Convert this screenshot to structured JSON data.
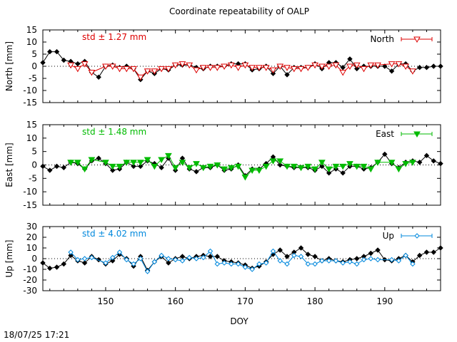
{
  "title": "Coordinate repeatability of OALP",
  "timestamp": "18/07/25 17:21",
  "xlabel": "DOY",
  "chart_data": [
    {
      "type": "line",
      "ylabel": "North [mm]",
      "xlim": [
        141,
        198
      ],
      "ylim": [
        -15,
        15
      ],
      "yticks": [
        15,
        10,
        5,
        0,
        -5,
        -10,
        -15
      ],
      "xticks": [],
      "annotation": "std ± 1.27 mm",
      "annotation_color": "#dd0000",
      "legend": "North",
      "legend_position": "top-right",
      "series": [
        {
          "color": "#000000",
          "marker": "diamond",
          "x": [
            141,
            142,
            143,
            144,
            145,
            146,
            147,
            148,
            149,
            150,
            151,
            152,
            153,
            154,
            155,
            156,
            157,
            158,
            159,
            160,
            161,
            162,
            163,
            164,
            165,
            166,
            167,
            168,
            169,
            170,
            171,
            172,
            173,
            174,
            175,
            176,
            177,
            178,
            179,
            180,
            181,
            182,
            183,
            184,
            185,
            186,
            187,
            188,
            189,
            190,
            191,
            192,
            193,
            194,
            195,
            196,
            197,
            198
          ],
          "y": [
            1.5,
            6,
            6,
            2.5,
            2,
            1,
            2,
            -2.5,
            -4.5,
            0,
            0.5,
            -0.5,
            0,
            -1,
            -5.5,
            -2,
            -3,
            -1,
            -1.5,
            0.5,
            0.5,
            0.5,
            -0.5,
            -1,
            0,
            0,
            0,
            1,
            1,
            1,
            -1.5,
            -1,
            0,
            -3,
            0,
            -3.5,
            -0.5,
            -0.5,
            -0.5,
            1,
            -1,
            1.5,
            1.5,
            -0.5,
            3,
            -1,
            0,
            0,
            0,
            0,
            -2,
            1,
            1,
            -2,
            -0.5,
            -0.5,
            0,
            0
          ]
        },
        {
          "color": "#dd0000",
          "marker": "triangle-down-open",
          "x": [
            145,
            146,
            147,
            148,
            150,
            151,
            152,
            153,
            154,
            155,
            156,
            157,
            158,
            159,
            160,
            161,
            162,
            163,
            164,
            165,
            166,
            167,
            168,
            169,
            170,
            171,
            172,
            173,
            174,
            175,
            176,
            177,
            178,
            179,
            180,
            181,
            182,
            183,
            184,
            185,
            186,
            187,
            188,
            189,
            191,
            192,
            193,
            194
          ],
          "y": [
            0.5,
            -1,
            1,
            -2.5,
            0,
            0,
            -1,
            -1,
            -1,
            -4.5,
            -2,
            -2,
            -1,
            -1,
            0.5,
            1,
            0.5,
            -1.5,
            -0.5,
            -0.5,
            -0.5,
            0,
            0.5,
            -0.5,
            0.5,
            -0.5,
            -0.5,
            -0.5,
            -1.5,
            0,
            -0.5,
            -1,
            -1,
            -0.5,
            0.5,
            0,
            0,
            0.5,
            -2.5,
            0,
            0.5,
            -1,
            0.5,
            0.5,
            1,
            1,
            0,
            -2
          ]
        }
      ]
    },
    {
      "type": "line",
      "ylabel": "East [mm]",
      "xlim": [
        141,
        198
      ],
      "ylim": [
        -15,
        15
      ],
      "yticks": [
        15,
        10,
        5,
        0,
        -5,
        -10,
        -15
      ],
      "xticks": [],
      "annotation": "std ± 1.48 mm",
      "annotation_color": "#00bb00",
      "legend": "East",
      "legend_position": "top-right",
      "series": [
        {
          "color": "#000000",
          "marker": "diamond",
          "x": [
            141,
            142,
            143,
            144,
            145,
            146,
            147,
            148,
            149,
            150,
            151,
            152,
            153,
            154,
            155,
            156,
            157,
            158,
            159,
            160,
            161,
            162,
            163,
            164,
            165,
            166,
            167,
            168,
            169,
            170,
            171,
            172,
            173,
            174,
            175,
            176,
            177,
            178,
            179,
            180,
            181,
            182,
            183,
            184,
            185,
            186,
            187,
            188,
            189,
            190,
            191,
            192,
            193,
            194,
            195,
            196,
            197,
            198
          ],
          "y": [
            -0.5,
            -2,
            -0.5,
            -1,
            1,
            0.5,
            -1.5,
            1.5,
            2.5,
            0.5,
            -2,
            -1.5,
            1,
            -0.5,
            -0.5,
            1.5,
            0.5,
            -1,
            2.5,
            -2,
            2.5,
            -1.5,
            -2.5,
            -1,
            -1,
            0,
            -2,
            -1.5,
            0,
            -4,
            -1.5,
            -1.5,
            0.5,
            3,
            0,
            -0.5,
            -1,
            -1,
            -1,
            -2,
            -0.5,
            -3,
            -1.5,
            -3,
            -0.5,
            -0.5,
            -1.5,
            -1,
            1,
            4,
            0.5,
            -1,
            1,
            1.5,
            1,
            3.5,
            1.5,
            0.5
          ]
        },
        {
          "color": "#00bb00",
          "marker": "triangle-down-filled",
          "x": [
            145,
            146,
            147,
            148,
            150,
            151,
            152,
            153,
            154,
            155,
            156,
            157,
            158,
            159,
            160,
            161,
            162,
            163,
            164,
            165,
            166,
            167,
            168,
            169,
            170,
            171,
            172,
            173,
            174,
            175,
            176,
            177,
            178,
            179,
            180,
            181,
            182,
            183,
            184,
            185,
            186,
            187,
            188,
            189,
            191,
            192,
            193,
            194
          ],
          "y": [
            1,
            1,
            -1.5,
            2,
            1,
            -0.5,
            -0.5,
            1,
            1,
            1,
            2,
            -0.5,
            2,
            3.5,
            -1,
            1,
            -1,
            0.5,
            -1,
            -0.5,
            0,
            -1.5,
            -1,
            -0.5,
            -4.5,
            -2,
            -2,
            -0.5,
            1.5,
            1.5,
            -0.5,
            -0.5,
            -1,
            -0.5,
            -1.5,
            1,
            -1.5,
            -0.5,
            -0.5,
            0.5,
            -0.5,
            -0.5,
            -1.5,
            1,
            1,
            -1.5,
            0.5,
            1
          ]
        }
      ]
    },
    {
      "type": "line",
      "ylabel": "Up [mm]",
      "xlim": [
        141,
        198
      ],
      "ylim": [
        -30,
        30
      ],
      "yticks": [
        30,
        20,
        10,
        0,
        -10,
        -20,
        -30
      ],
      "xticks": [
        150,
        160,
        170,
        180,
        190
      ],
      "annotation": "std ± 4.02 mm",
      "annotation_color": "#0088dd",
      "legend": "Up",
      "legend_position": "top-right",
      "series": [
        {
          "color": "#000000",
          "marker": "diamond",
          "x": [
            141,
            142,
            143,
            144,
            145,
            146,
            147,
            148,
            149,
            150,
            151,
            152,
            153,
            154,
            155,
            156,
            157,
            158,
            159,
            160,
            161,
            162,
            163,
            164,
            165,
            166,
            167,
            168,
            169,
            170,
            171,
            172,
            173,
            174,
            175,
            176,
            177,
            178,
            179,
            180,
            181,
            182,
            183,
            184,
            185,
            186,
            187,
            188,
            189,
            190,
            191,
            192,
            193,
            194,
            195,
            196,
            197,
            198
          ],
          "y": [
            -4,
            -9,
            -8,
            -5,
            3,
            -2,
            -4,
            2,
            -1,
            -5,
            -2,
            4,
            0,
            -7,
            2,
            -11,
            -3,
            2,
            -4,
            0,
            2,
            0,
            2,
            3,
            2,
            2,
            -2,
            -3,
            -4,
            -6,
            -9,
            -7,
            -3,
            4,
            8,
            2,
            6,
            10,
            4,
            2,
            -2,
            0,
            -2,
            -3,
            -1,
            0,
            2,
            5,
            8,
            -1,
            -2,
            0,
            3,
            -3,
            3,
            6,
            6,
            10
          ]
        },
        {
          "color": "#0088dd",
          "marker": "diamond-open",
          "x": [
            145,
            146,
            147,
            148,
            150,
            151,
            152,
            153,
            154,
            155,
            156,
            157,
            158,
            159,
            160,
            161,
            162,
            163,
            164,
            165,
            166,
            167,
            168,
            169,
            170,
            171,
            172,
            173,
            174,
            175,
            176,
            177,
            178,
            179,
            180,
            181,
            182,
            183,
            184,
            185,
            186,
            187,
            188,
            189,
            191,
            192,
            193,
            194
          ],
          "y": [
            6,
            -1,
            0,
            1,
            -4,
            1,
            6,
            -1,
            -5,
            0,
            -12,
            -3,
            3,
            0,
            -1,
            -2,
            1,
            0,
            1,
            7,
            -5,
            -4,
            -5,
            -5,
            -8,
            -10,
            -5,
            -4,
            7,
            -2,
            -5,
            3,
            2,
            -5,
            -5,
            -2,
            -2,
            -2,
            -4,
            -3,
            -5,
            -1,
            0,
            -1,
            -1,
            -2,
            3,
            -5
          ]
        }
      ]
    }
  ]
}
